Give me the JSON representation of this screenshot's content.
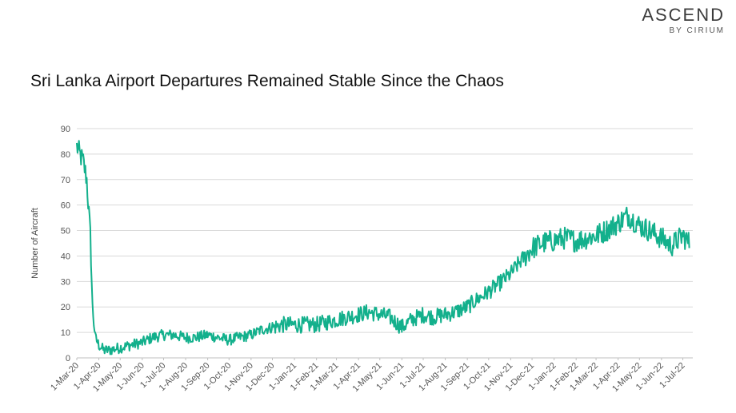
{
  "brand": {
    "name": "ASCEND",
    "sub": "BY CIRIUM"
  },
  "chart_data": {
    "type": "line",
    "title": "Sri Lanka Airport Departures Remained Stable Since the Chaos",
    "ylabel": "Number of Aircraft",
    "xlabel": "",
    "ylim": [
      0,
      90
    ],
    "yticks": [
      0,
      10,
      20,
      30,
      40,
      50,
      60,
      70,
      80,
      90
    ],
    "grid": true,
    "line_color": "#13b08c",
    "x_tick_labels": [
      "1-Mar-20",
      "1-Apr-20",
      "1-May-20",
      "1-Jun-20",
      "1-Jul-20",
      "1-Aug-20",
      "1-Sep-20",
      "1-Oct-20",
      "1-Nov-20",
      "1-Dec-20",
      "1-Jan-21",
      "1-Feb-21",
      "1-Mar-21",
      "1-Apr-21",
      "1-May-21",
      "1-Jun-21",
      "1-Jul-21",
      "1-Aug-21",
      "1-Sep-21",
      "1-Oct-21",
      "1-Nov-21",
      "1-Dec-21",
      "1-Jan-22",
      "1-Feb-22",
      "1-Mar-22",
      "1-Apr-22",
      "1-May-22",
      "1-Jun-22",
      "1-Jul-22"
    ],
    "series": [
      {
        "x": [
          "1-Mar-20",
          "5-Mar-20",
          "10-Mar-20",
          "15-Mar-20",
          "20-Mar-20",
          "23-Mar-20",
          "27-Mar-20",
          "1-Apr-20",
          "8-Apr-20",
          "15-Apr-20",
          "1-May-20",
          "15-May-20",
          "1-Jun-20",
          "15-Jun-20",
          "1-Jul-20",
          "15-Jul-20",
          "1-Aug-20",
          "15-Aug-20",
          "1-Sep-20",
          "15-Sep-20",
          "1-Oct-20",
          "15-Oct-20",
          "1-Nov-20",
          "15-Nov-20",
          "1-Dec-20",
          "15-Dec-20",
          "1-Jan-21",
          "15-Jan-21",
          "1-Feb-21",
          "15-Feb-21",
          "1-Mar-21",
          "15-Mar-21",
          "1-Apr-21",
          "15-Apr-21",
          "1-May-21",
          "15-May-21",
          "1-Jun-21",
          "15-Jun-21",
          "1-Jul-21",
          "15-Jul-21",
          "1-Aug-21",
          "15-Aug-21",
          "1-Sep-21",
          "15-Sep-21",
          "1-Oct-21",
          "15-Oct-21",
          "1-Nov-21",
          "15-Nov-21",
          "1-Dec-21",
          "15-Dec-21",
          "1-Jan-22",
          "15-Jan-22",
          "1-Feb-22",
          "15-Feb-22",
          "1-Mar-22",
          "15-Mar-22",
          "1-Apr-22",
          "15-Apr-22",
          "1-May-22",
          "15-May-22",
          "1-Jun-22",
          "15-Jun-22",
          "1-Jul-22",
          "10-Jul-22"
        ],
        "values": [
          83,
          80,
          77,
          70,
          48,
          20,
          8,
          5,
          3,
          3,
          4,
          5,
          6,
          8,
          9,
          9,
          8,
          8,
          9,
          8,
          7,
          8,
          9,
          11,
          12,
          13,
          13,
          13,
          13,
          14,
          15,
          16,
          17,
          18,
          17,
          16,
          12,
          15,
          17,
          16,
          17,
          18,
          20,
          23,
          26,
          29,
          33,
          38,
          43,
          45,
          46,
          47,
          46,
          47,
          48,
          50,
          53,
          56,
          52,
          50,
          47,
          44,
          48,
          45
        ]
      }
    ]
  }
}
